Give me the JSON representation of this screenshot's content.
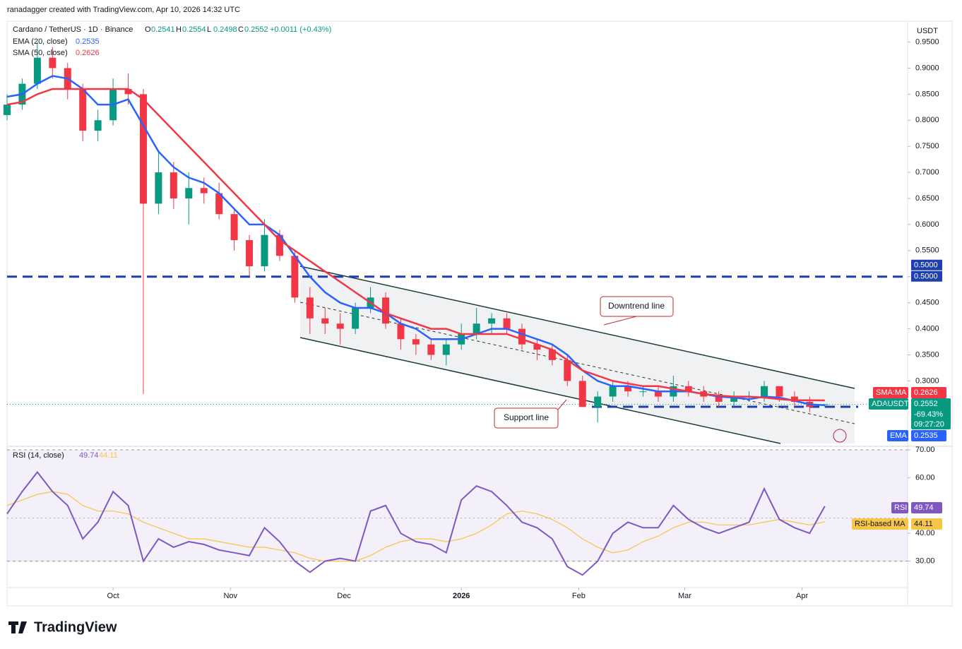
{
  "header": {
    "credit": "ranadagger created with TradingView.com, Apr 10, 2026 14:32 UTC",
    "symbol": "Cardano / TetherUS · 1D · Binance",
    "ohlc_letters": [
      "O",
      "H",
      "L",
      "C"
    ],
    "change": "+0.0011 (+0.43%)",
    "currency": "USDT",
    "brand": "TradingView",
    "change_pct": "-69.43%",
    "countdown": "09:27:20"
  },
  "chart_data": [
    {
      "type": "candlestick",
      "up_color": "#089981",
      "down_color": "#f23645",
      "open": [
        0.81,
        0.83,
        0.87,
        0.92,
        0.9,
        0.86,
        0.78,
        0.8,
        0.86,
        0.85,
        0.64,
        0.7,
        0.65,
        0.67,
        0.66,
        0.62,
        0.57,
        0.52,
        0.58,
        0.54,
        0.46,
        0.42,
        0.41,
        0.4,
        0.44,
        0.46,
        0.41,
        0.38,
        0.37,
        0.35,
        0.37,
        0.39,
        0.41,
        0.42,
        0.4,
        0.37,
        0.36,
        0.34,
        0.3,
        0.25,
        0.27,
        0.29,
        0.28,
        0.28,
        0.27,
        0.29,
        0.28,
        0.27,
        0.26,
        0.27,
        0.27,
        0.29,
        0.27,
        0.26,
        0.2541
      ],
      "high": [
        0.85,
        0.88,
        0.95,
        0.94,
        0.91,
        0.87,
        0.82,
        0.88,
        0.89,
        0.86,
        0.74,
        0.72,
        0.7,
        0.69,
        0.68,
        0.63,
        0.58,
        0.61,
        0.59,
        0.55,
        0.48,
        0.44,
        0.43,
        0.45,
        0.48,
        0.47,
        0.42,
        0.39,
        0.38,
        0.38,
        0.41,
        0.44,
        0.43,
        0.43,
        0.41,
        0.38,
        0.37,
        0.35,
        0.31,
        0.28,
        0.3,
        0.3,
        0.29,
        0.29,
        0.31,
        0.3,
        0.29,
        0.28,
        0.28,
        0.28,
        0.3,
        0.29,
        0.28,
        0.27,
        0.2554
      ],
      "low": [
        0.8,
        0.82,
        0.86,
        0.88,
        0.84,
        0.76,
        0.76,
        0.79,
        0.83,
        0.275,
        0.62,
        0.63,
        0.6,
        0.64,
        0.61,
        0.55,
        0.5,
        0.51,
        0.53,
        0.45,
        0.39,
        0.39,
        0.37,
        0.39,
        0.43,
        0.4,
        0.36,
        0.35,
        0.34,
        0.33,
        0.36,
        0.38,
        0.39,
        0.39,
        0.36,
        0.34,
        0.33,
        0.29,
        0.25,
        0.22,
        0.26,
        0.27,
        0.27,
        0.26,
        0.26,
        0.27,
        0.26,
        0.25,
        0.25,
        0.26,
        0.26,
        0.26,
        0.25,
        0.24,
        0.2498
      ],
      "close": [
        0.83,
        0.87,
        0.92,
        0.9,
        0.86,
        0.78,
        0.8,
        0.86,
        0.85,
        0.64,
        0.7,
        0.65,
        0.67,
        0.66,
        0.62,
        0.57,
        0.52,
        0.58,
        0.54,
        0.46,
        0.42,
        0.41,
        0.4,
        0.44,
        0.46,
        0.41,
        0.38,
        0.37,
        0.35,
        0.37,
        0.39,
        0.41,
        0.42,
        0.4,
        0.37,
        0.36,
        0.34,
        0.3,
        0.25,
        0.27,
        0.29,
        0.28,
        0.28,
        0.27,
        0.29,
        0.28,
        0.27,
        0.26,
        0.27,
        0.27,
        0.29,
        0.27,
        0.26,
        0.25,
        0.2552
      ],
      "series": [
        {
          "name": "EMA (20, close)",
          "tag": "EMA",
          "color": "#2962ff",
          "values": [
            0.845,
            0.85,
            0.87,
            0.885,
            0.88,
            0.86,
            0.83,
            0.83,
            0.84,
            0.79,
            0.74,
            0.71,
            0.69,
            0.68,
            0.66,
            0.63,
            0.6,
            0.6,
            0.58,
            0.54,
            0.5,
            0.47,
            0.45,
            0.44,
            0.44,
            0.43,
            0.41,
            0.4,
            0.38,
            0.38,
            0.38,
            0.39,
            0.4,
            0.4,
            0.39,
            0.38,
            0.37,
            0.35,
            0.32,
            0.3,
            0.29,
            0.29,
            0.285,
            0.28,
            0.28,
            0.28,
            0.275,
            0.27,
            0.268,
            0.265,
            0.27,
            0.268,
            0.262,
            0.255,
            0.2535
          ]
        },
        {
          "name": "SMA (50, close)",
          "tag": "SMA:MA",
          "color": "#f23645",
          "values": [
            0.83,
            0.835,
            0.85,
            0.86,
            0.86,
            0.86,
            0.86,
            0.86,
            0.86,
            0.84,
            0.81,
            0.78,
            0.75,
            0.72,
            0.69,
            0.66,
            0.63,
            0.6,
            0.57,
            0.55,
            0.53,
            0.51,
            0.49,
            0.47,
            0.45,
            0.43,
            0.42,
            0.41,
            0.4,
            0.4,
            0.39,
            0.39,
            0.39,
            0.39,
            0.38,
            0.37,
            0.36,
            0.34,
            0.32,
            0.31,
            0.3,
            0.295,
            0.29,
            0.29,
            0.285,
            0.28,
            0.275,
            0.272,
            0.27,
            0.27,
            0.268,
            0.265,
            0.263,
            0.263,
            0.2626
          ]
        }
      ],
      "symbol_tag": "ADAUSDT",
      "level": {
        "value": 0.5,
        "label": "0.5000"
      },
      "annotations": [
        "Downtrend line",
        "Support line"
      ],
      "ylim": [
        0.18,
        0.99
      ],
      "yticks": [
        {
          "value": 0.95,
          "label": "0.9500"
        },
        {
          "value": 0.9,
          "label": "0.9000"
        },
        {
          "value": 0.85,
          "label": "0.8500"
        },
        {
          "value": 0.8,
          "label": "0.8000"
        },
        {
          "value": 0.75,
          "label": "0.7500"
        },
        {
          "value": 0.7,
          "label": "0.7000"
        },
        {
          "value": 0.65,
          "label": "0.6500"
        },
        {
          "value": 0.6,
          "label": "0.6000"
        },
        {
          "value": 0.55,
          "label": "0.5500"
        },
        {
          "value": 0.5,
          "label": "0.5000"
        },
        {
          "value": 0.45,
          "label": "0.4500"
        },
        {
          "value": 0.4,
          "label": "0.4000"
        },
        {
          "value": 0.35,
          "label": "0.3500"
        },
        {
          "value": 0.3,
          "label": "0.3000"
        }
      ],
      "xticks": [
        {
          "value": 7,
          "label": "Oct"
        },
        {
          "value": 14.75,
          "label": "Nov"
        },
        {
          "value": 22.25,
          "label": "Dec"
        },
        {
          "value": 30,
          "label": "2026"
        },
        {
          "value": 37.75,
          "label": "Feb"
        },
        {
          "value": 44.75,
          "label": "Mar"
        },
        {
          "value": 52.5,
          "label": "Apr"
        }
      ]
    },
    {
      "type": "line",
      "series": [
        {
          "name": "RSI (14, close)",
          "tag": "RSI",
          "color": "#7e57c2",
          "values": [
            47,
            55,
            62,
            55,
            50,
            38,
            44,
            55,
            50,
            30,
            38,
            35,
            37,
            36,
            34,
            33,
            32,
            42,
            37,
            30,
            26,
            30,
            31,
            30,
            48,
            50,
            40,
            37,
            36,
            33,
            52,
            57,
            55,
            50,
            44,
            42,
            38,
            28,
            25,
            30,
            40,
            44,
            42,
            42,
            50,
            45,
            42,
            40,
            42,
            44,
            56,
            45,
            42,
            40,
            49.74
          ]
        },
        {
          "name": "RSI-based MA",
          "tag": "RSI-based MA",
          "color": "#f7c548",
          "values": [
            50,
            52,
            54,
            55,
            54,
            50,
            48,
            48,
            47,
            44,
            42,
            40,
            38,
            38,
            37,
            36,
            35,
            35,
            34,
            33,
            31,
            30,
            30,
            30,
            32,
            35,
            37,
            38,
            38,
            37,
            38,
            40,
            43,
            47,
            48,
            47,
            45,
            42,
            38,
            35,
            33,
            34,
            37,
            39,
            42,
            44,
            44,
            43,
            43,
            43,
            44,
            45,
            44,
            43,
            44.11
          ]
        }
      ],
      "ylim": [
        21,
        70
      ],
      "yticks": [
        {
          "value": 70,
          "label": "70.00"
        },
        {
          "value": 60,
          "label": "60.00"
        },
        {
          "value": 40,
          "label": "40.00"
        },
        {
          "value": 30,
          "label": "30.00"
        }
      ]
    }
  ]
}
